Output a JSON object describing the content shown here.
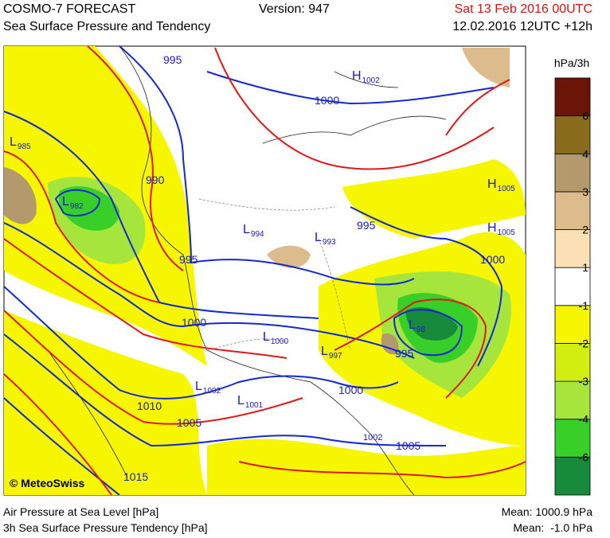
{
  "header": {
    "model": "COSMO-7 FORECAST",
    "version": "Version: 947",
    "valid": "Sat 13 Feb 2016 00UTC",
    "subtitle": "Sea Surface Pressure and Tendency",
    "run": "12.02.2016 12UTC +12h"
  },
  "legend": {
    "unit": "hPa/3h",
    "colors": [
      "#6b1508",
      "#8a6d1c",
      "#b39a6c",
      "#dcbb8c",
      "#fbe0b6",
      "#ffffff",
      "#f6f600",
      "#d2ee10",
      "#a6e63c",
      "#38d028",
      "#178a3c"
    ],
    "ticks": [
      "6",
      "4",
      "3",
      "2",
      "1",
      "-1",
      "-2",
      "-3",
      "-4",
      "-6"
    ]
  },
  "isobar_labels": [
    "995",
    "1000",
    "990",
    "995",
    "995",
    "1000",
    "1000",
    "995",
    "1000",
    "1010",
    "1005",
    "1002",
    "1005",
    "1015"
  ],
  "centers": [
    {
      "letter": "H",
      "value": "1002"
    },
    {
      "letter": "L",
      "value": "985"
    },
    {
      "letter": "L",
      "value": "982"
    },
    {
      "letter": "H",
      "value": "1005"
    },
    {
      "letter": "L",
      "value": "994"
    },
    {
      "letter": "L",
      "value": "993"
    },
    {
      "letter": "H",
      "value": "1005"
    },
    {
      "letter": "L",
      "value": "1000"
    },
    {
      "letter": "L",
      "value": "98"
    },
    {
      "letter": "L",
      "value": "997"
    },
    {
      "letter": "L",
      "value": "1002"
    },
    {
      "letter": "L",
      "value": "1001"
    }
  ],
  "copyright": "© MeteoSwiss",
  "footer": {
    "pressure": "Air Pressure at Sea Level [hPa]",
    "tendency": "3h Sea Surface Pressure Tendency [hPa]",
    "pressure_mean": "Mean: 1000.9 hPa",
    "tendency_mean": "Mean:  -1.0 hPa"
  }
}
